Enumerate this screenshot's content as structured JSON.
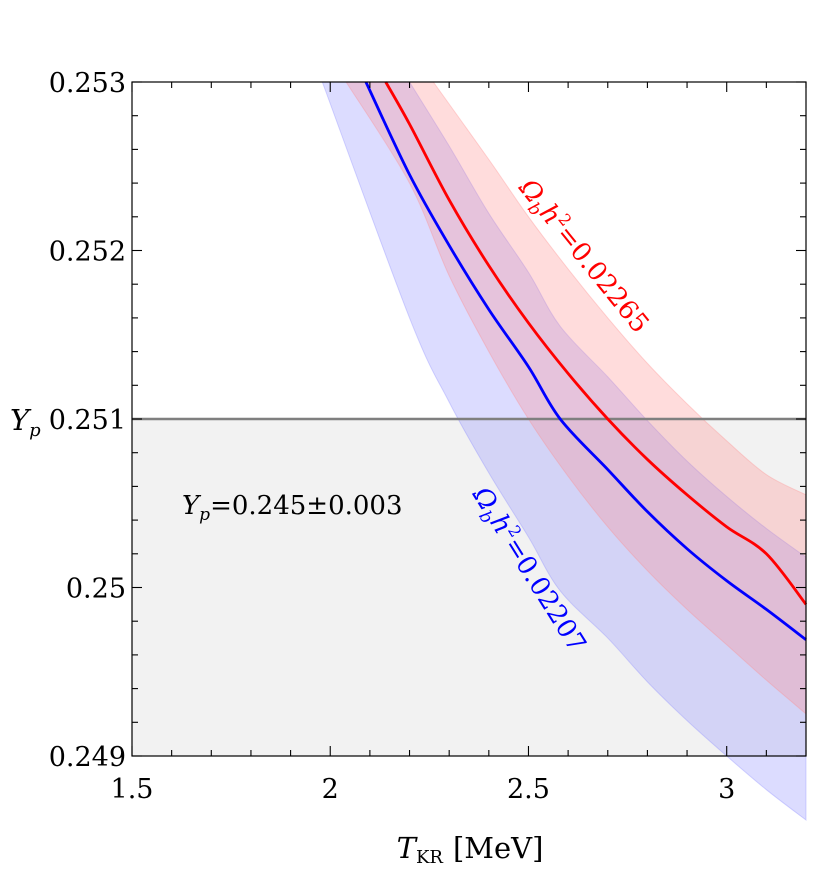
{
  "chart_data": {
    "type": "line",
    "title": "",
    "xlabel": "T_KR [MeV]",
    "xlabel_main": "T",
    "xlabel_sub": "KR",
    "xlabel_unit": "[MeV]",
    "ylabel": "Y_p",
    "ylabel_main": "Y",
    "ylabel_sub": "p",
    "xlim": [
      1.5,
      3.2
    ],
    "ylim": [
      0.249,
      0.253
    ],
    "x_ticks": [
      1.5,
      2,
      2.5,
      3
    ],
    "x_tick_labels": [
      "1.5",
      "2",
      "2.5",
      "3"
    ],
    "y_ticks": [
      0.249,
      0.25,
      0.251,
      0.252,
      0.253
    ],
    "y_tick_labels": [
      "0.249",
      "0.25",
      "0.251",
      "0.252",
      "0.253"
    ],
    "constraint": {
      "label": "Y_p=0.245±0.003",
      "label_main": "Y",
      "label_sub": "p",
      "label_value": "=0.245±0.003",
      "upper_bound": 0.251,
      "line_color": "#7f7f7f",
      "fill_color": "#f2f2f2"
    },
    "series": [
      {
        "name": "Ω_b h^2=0.02265",
        "label_value": "=0.02265",
        "color": "#ff0000",
        "band_color": "#ff8c8c",
        "x": [
          2.14,
          2.2,
          2.3,
          2.4,
          2.5,
          2.6,
          2.7,
          2.8,
          2.9,
          3.0,
          3.1,
          3.2
        ],
        "y": [
          0.253,
          0.25275,
          0.2523,
          0.25191,
          0.25157,
          0.25127,
          0.251,
          0.25076,
          0.25055,
          0.25036,
          0.2502,
          0.2499
        ],
        "upper": [
          0.253,
          0.253,
          0.25292,
          0.25254,
          0.2522,
          0.25189,
          0.2516,
          0.25133,
          0.25109,
          0.25087,
          0.25067,
          0.25055
        ],
        "lower": [
          0.253,
          0.2524,
          0.25185,
          0.2514,
          0.251,
          0.25066,
          0.25036,
          0.2501,
          0.24987,
          0.24966,
          0.24945,
          0.24925
        ]
      },
      {
        "name": "Ω_b h^2=0.02207",
        "label_value": "=0.02207",
        "color": "#0000ff",
        "band_color": "#8c8cff",
        "x": [
          2.09,
          2.2,
          2.3,
          2.4,
          2.5,
          2.58,
          2.7,
          2.8,
          2.9,
          3.0,
          3.1,
          3.2
        ],
        "y": [
          0.253,
          0.25245,
          0.25203,
          0.25165,
          0.25131,
          0.251,
          0.2507,
          0.25045,
          0.25023,
          0.25004,
          0.24987,
          0.24969
        ],
        "upper": [
          0.253,
          0.253,
          0.25262,
          0.25222,
          0.25187,
          0.25155,
          0.25125,
          0.25099,
          0.25075,
          0.25054,
          0.25035,
          0.25018
        ],
        "lower": [
          0.253,
          0.2516,
          0.2511,
          0.25068,
          0.2503,
          0.24998,
          0.2497,
          0.24944,
          0.24921,
          0.249,
          0.2488,
          0.24862
        ]
      }
    ],
    "extra_band_edges": {
      "blue_upper_start": [
        1.98,
        0.253
      ],
      "red_upper_start": [
        2.26,
        0.253
      ],
      "red_lower_start": [
        2.04,
        0.253
      ]
    }
  }
}
